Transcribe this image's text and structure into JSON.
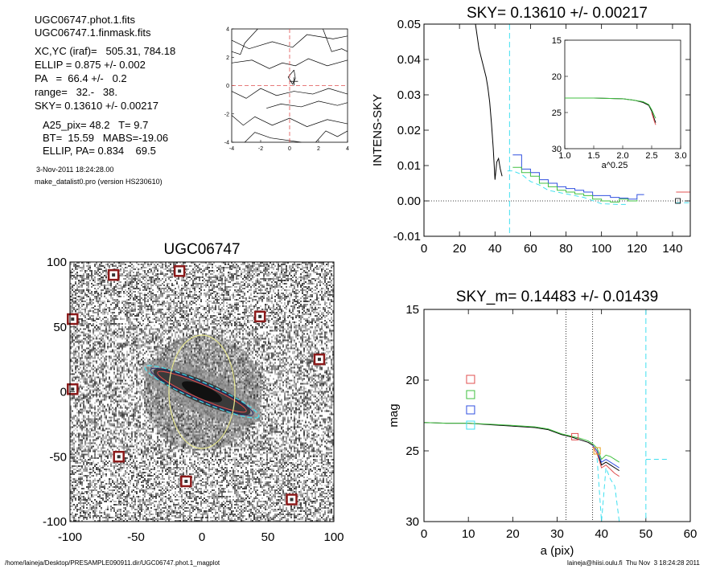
{
  "header": {
    "lines": [
      "UGC06747.phot.1.fits",
      "UGC06747.1.finmask.fits",
      "XC,YC (iraf)=   505.31, 784.18",
      "ELLIP = 0.875 +/- 0.002",
      "PA   =  66.4 +/-   0.2",
      "range=   32.-   38.",
      "SKY= 0.13610 +/- 0.00217",
      "A25_pix= 48.2   T= 9.7",
      "BT=  15.59   MABS=-19.06",
      "ELLIP, PA= 0.834    69.5"
    ],
    "date": "3-Nov-2011 18:24:28.00",
    "program": "make_datalist0.pro (version HS230610)"
  },
  "footer": {
    "path": "/home/laineja/Desktop/PRESAMPLE090911.dir/UGC06747.phot.1_magplot",
    "user": "laineja@hiisi.oulu.fi  Thu Nov  3 18:24:28 2011"
  },
  "colors": {
    "red": "#e05050",
    "green": "#40c040",
    "blue": "#3050e0",
    "cyan": "#40e0f0",
    "ellipse_yellow": "#e8e890",
    "marker": "#8b1a1a"
  },
  "chart_data": [
    {
      "type": "contour",
      "title": "",
      "xlim": [
        -4,
        4
      ],
      "ylim": [
        -4,
        4
      ],
      "xticks": [
        -4,
        -2,
        0,
        2,
        4
      ],
      "yticks": [
        -4,
        -2,
        0,
        2,
        4
      ],
      "crosshair": [
        0,
        0
      ],
      "offset_mark": [
        0.3,
        0.3
      ]
    },
    {
      "type": "line",
      "title": "SKY= 0.13610 +/- 0.00217",
      "xlabel": "",
      "ylabel": "INTENS-SKY",
      "xlim": [
        0,
        150
      ],
      "ylim": [
        -0.01,
        0.05
      ],
      "xticks": [
        0,
        20,
        40,
        60,
        80,
        100,
        120,
        140
      ],
      "yticks": [
        "0.05",
        "0.04",
        "0.03",
        "0.02",
        "0.01",
        "0.00",
        "-0.01"
      ],
      "sky_level_line": 0,
      "vline_cyan": 48.2,
      "series": [
        {
          "color": "black",
          "x": [
            29,
            31,
            33,
            35,
            36,
            37,
            38,
            39,
            40,
            41,
            42,
            43,
            44
          ],
          "y": [
            0.05,
            0.043,
            0.039,
            0.035,
            0.032,
            0.028,
            0.022,
            0.015,
            0.006,
            0.011,
            0.012,
            0.009,
            0.007
          ]
        },
        {
          "color": "blue",
          "step": true,
          "x": [
            50,
            55,
            60,
            65,
            70,
            75,
            80,
            85,
            90,
            95,
            100,
            105,
            110,
            115,
            120,
            124
          ],
          "y": [
            0.013,
            0.009,
            0.008,
            0.006,
            0.005,
            0.004,
            0.0035,
            0.003,
            0.0025,
            0.0015,
            0.0015,
            0.001,
            0.0008,
            0.0005,
            0.0018,
            0.0018
          ]
        },
        {
          "color": "green",
          "step": true,
          "x": [
            50,
            55,
            60,
            65,
            70,
            75,
            80,
            85,
            90,
            95,
            100,
            105,
            110,
            115,
            120
          ],
          "y": [
            0.0095,
            0.008,
            0.007,
            0.005,
            0.004,
            0.003,
            0.0025,
            0.002,
            0.0015,
            0.0005,
            0.0,
            -0.0003,
            0.0005,
            0.0,
            0.0003
          ]
        },
        {
          "color": "cyan",
          "dashed": true,
          "x": [
            47,
            50,
            55,
            60,
            65,
            70,
            80,
            90,
            100,
            110,
            115
          ],
          "y": [
            0.0085,
            0.0085,
            0.0075,
            0.0055,
            0.0045,
            0.003,
            0.002,
            0.001,
            -0.0008,
            -0.001,
            -0.001
          ]
        },
        {
          "color": "red",
          "x": [
            142,
            150
          ],
          "y": [
            0.0025,
            0.0025
          ]
        },
        {
          "color": "cyan",
          "dashed": true,
          "x": [
            142,
            150
          ],
          "y": [
            -0.0005,
            -0.0005
          ]
        }
      ],
      "inset": {
        "xlabel": "a^0.25",
        "xlim": [
          1.0,
          3.0
        ],
        "ylim": [
          15,
          30
        ],
        "xticks": [
          "1.0",
          "1.5",
          "2.0",
          "2.5",
          "3.0"
        ],
        "yticks": [
          "15",
          "20",
          "25",
          "30"
        ],
        "series": [
          {
            "color": "black",
            "x": [
              1.0,
              1.5,
              2.0,
              2.2,
              2.35,
              2.45,
              2.5,
              2.55,
              2.57
            ],
            "y": [
              23.0,
              23.0,
              23.1,
              23.3,
              23.6,
              24.0,
              24.8,
              26.0,
              26.4
            ]
          },
          {
            "color": "green",
            "x": [
              1.0,
              1.5,
              2.0,
              2.2,
              2.35,
              2.45,
              2.5,
              2.55,
              2.57
            ],
            "y": [
              23.0,
              23.0,
              23.1,
              23.3,
              23.5,
              23.9,
              24.6,
              25.5,
              25.8
            ]
          },
          {
            "color": "red",
            "x": [
              2.5,
              2.55,
              2.57
            ],
            "y": [
              25.0,
              26.3,
              26.7
            ]
          }
        ]
      }
    },
    {
      "type": "image",
      "title": "UGC06747",
      "xlim": [
        -100,
        100
      ],
      "ylim": [
        -100,
        100
      ],
      "xticks": [
        -100,
        -50,
        0,
        50,
        100
      ],
      "yticks": [
        100,
        50,
        0,
        -50,
        -100
      ],
      "galaxy": {
        "center": [
          0,
          0
        ],
        "semi_major": 47,
        "axis_ratio": 0.15,
        "pa_deg": 66.4
      },
      "outer_ellipse": {
        "center": [
          0,
          0
        ],
        "semi_x": 25,
        "semi_y": 43
      },
      "masked_stars": [
        [
          -67,
          90
        ],
        [
          -17,
          93
        ],
        [
          44,
          58
        ],
        [
          89,
          25
        ],
        [
          -98,
          56
        ],
        [
          -98,
          2
        ],
        [
          -63,
          -50
        ],
        [
          -12,
          -69
        ],
        [
          68,
          -83
        ]
      ]
    },
    {
      "type": "line",
      "title": "SKY_m=  0.14483 +/- 0.01439",
      "xlabel": "a (pix)",
      "ylabel": "mag",
      "xlim": [
        0,
        60
      ],
      "ylim": [
        30,
        15
      ],
      "xticks": [
        0,
        10,
        20,
        30,
        40,
        50,
        60
      ],
      "yticks": [
        15,
        20,
        25,
        30
      ],
      "vlines_dotted": [
        32,
        38
      ],
      "vline_cyan": 50,
      "legend_markers": [
        "red",
        "green",
        "blue",
        "cyan"
      ],
      "series": [
        {
          "color": "black",
          "x": [
            0,
            5,
            10,
            15,
            20,
            25,
            28,
            31,
            33,
            35,
            37,
            38,
            39,
            40,
            41,
            42,
            43,
            44
          ],
          "y": [
            23.0,
            23.05,
            23.05,
            23.15,
            23.25,
            23.35,
            23.5,
            23.85,
            24.0,
            24.2,
            24.4,
            24.6,
            25.0,
            26.0,
            25.8,
            26.0,
            26.2,
            26.4
          ]
        },
        {
          "color": "green",
          "x": [
            0,
            5,
            10,
            15,
            20,
            25,
            28,
            31,
            33,
            35,
            37,
            38,
            39,
            40,
            41,
            42,
            43,
            44
          ],
          "y": [
            23.0,
            23.05,
            23.05,
            23.12,
            23.2,
            23.3,
            23.45,
            23.8,
            23.95,
            24.1,
            24.3,
            24.5,
            24.8,
            25.6,
            25.3,
            25.4,
            25.6,
            25.8
          ]
        },
        {
          "color": "red",
          "x": [
            38,
            39,
            40,
            41,
            42,
            43,
            44
          ],
          "y": [
            24.7,
            25.2,
            26.2,
            26.0,
            26.3,
            26.6,
            26.8
          ]
        },
        {
          "color": "blue",
          "x": [
            38,
            39,
            40,
            41,
            42,
            43,
            44
          ],
          "y": [
            24.6,
            25.0,
            25.8,
            25.6,
            25.8,
            26.0,
            26.2
          ]
        },
        {
          "color": "cyan",
          "dashed": true,
          "x": [
            39,
            40,
            41,
            42,
            43,
            44
          ],
          "y": [
            25.5,
            30.0,
            26.2,
            27.0,
            27.5,
            30.0
          ]
        },
        {
          "color": "cyan",
          "dashed": true,
          "x": [
            50,
            55
          ],
          "y": [
            25.6,
            25.6
          ]
        }
      ],
      "markers": [
        {
          "color": "red",
          "x": 34,
          "y": 24.0
        },
        {
          "color": "orange",
          "x": 39,
          "y": 25.0
        }
      ]
    }
  ]
}
